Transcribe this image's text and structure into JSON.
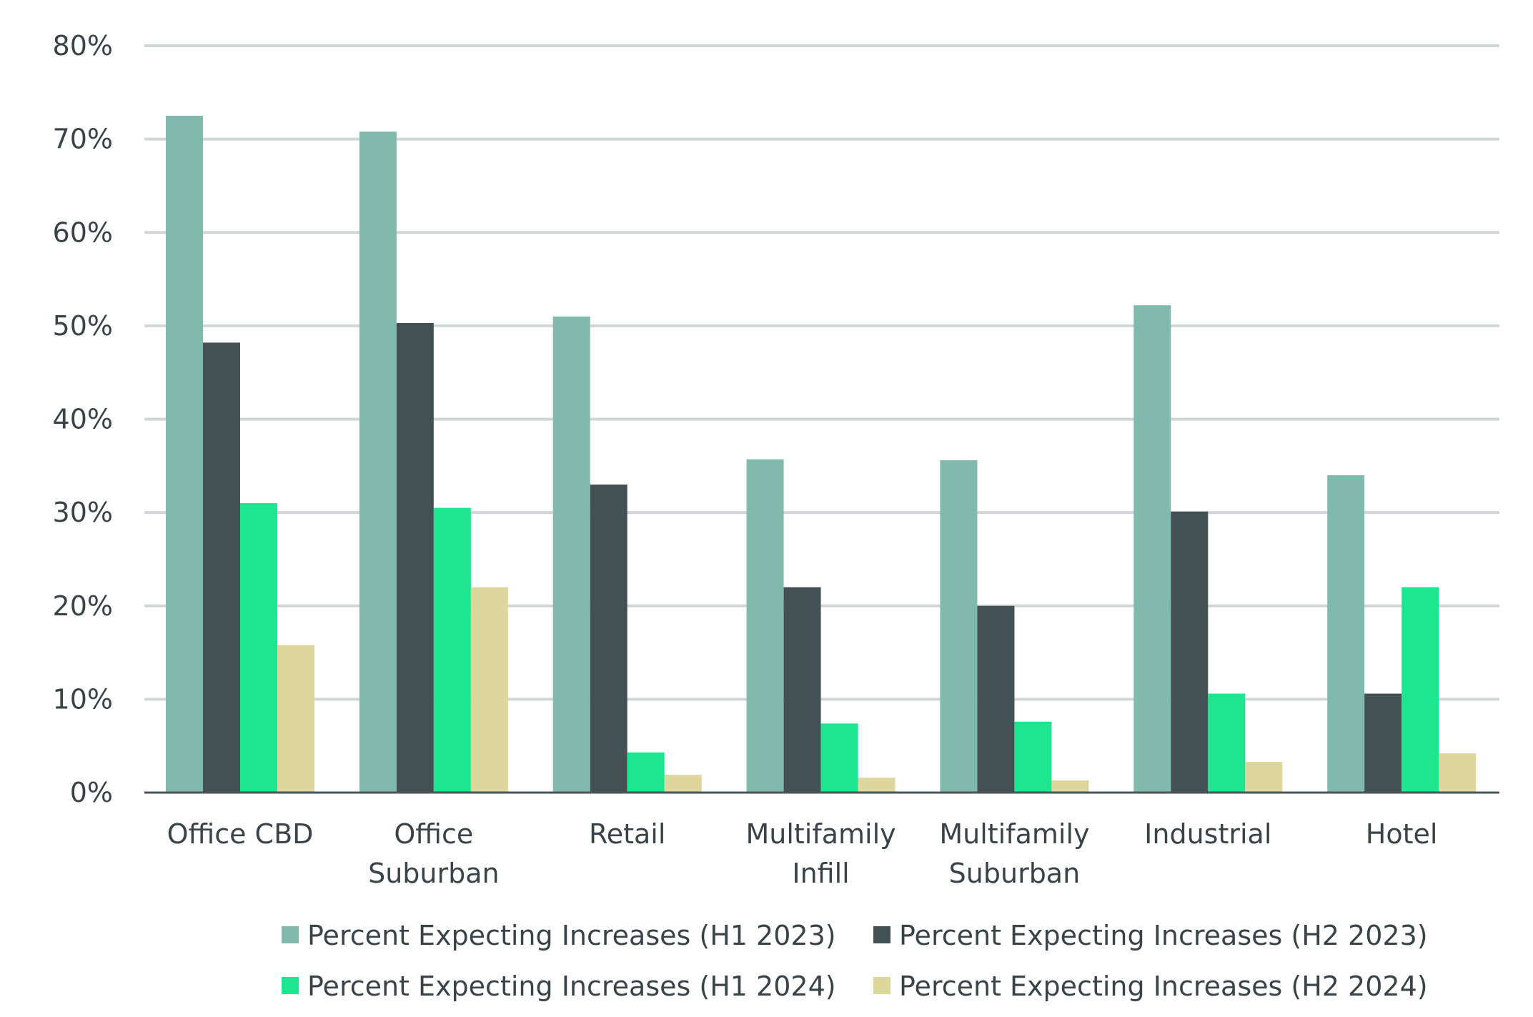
{
  "chart_data": {
    "type": "bar",
    "title": "",
    "xlabel": "",
    "ylabel": "",
    "ylim": [
      0,
      80
    ],
    "yticks": [
      0,
      10,
      20,
      30,
      40,
      50,
      60,
      70,
      80
    ],
    "ytick_labels": [
      "0%",
      "10%",
      "20%",
      "30%",
      "40%",
      "50%",
      "60%",
      "70%",
      "80%"
    ],
    "grid": true,
    "legend_position": "bottom",
    "categories": [
      [
        "Office CBD"
      ],
      [
        "Office",
        "Suburban"
      ],
      [
        "Retail"
      ],
      [
        "Multifamily",
        "Infill"
      ],
      [
        "Multifamily",
        "Suburban"
      ],
      [
        "Industrial"
      ],
      [
        "Hotel"
      ]
    ],
    "series": [
      {
        "name": "Percent Expecting Increases (H1 2023)",
        "color": "#82b9ad",
        "values": [
          72.5,
          70.8,
          51.0,
          35.7,
          35.6,
          52.2,
          34.0
        ]
      },
      {
        "name": "Percent Expecting Increases (H2 2023)",
        "color": "#435155",
        "values": [
          48.2,
          50.3,
          33.0,
          22.0,
          20.0,
          30.1,
          10.6
        ]
      },
      {
        "name": "Percent Expecting Increases (H1 2024)",
        "color": "#1de590",
        "values": [
          31.0,
          30.5,
          4.3,
          7.4,
          7.6,
          10.6,
          22.0
        ]
      },
      {
        "name": "Percent Expecting Increases (H2 2024)",
        "color": "#ddd79d",
        "values": [
          15.8,
          22.0,
          1.9,
          1.6,
          1.3,
          3.3,
          4.2
        ]
      }
    ]
  }
}
